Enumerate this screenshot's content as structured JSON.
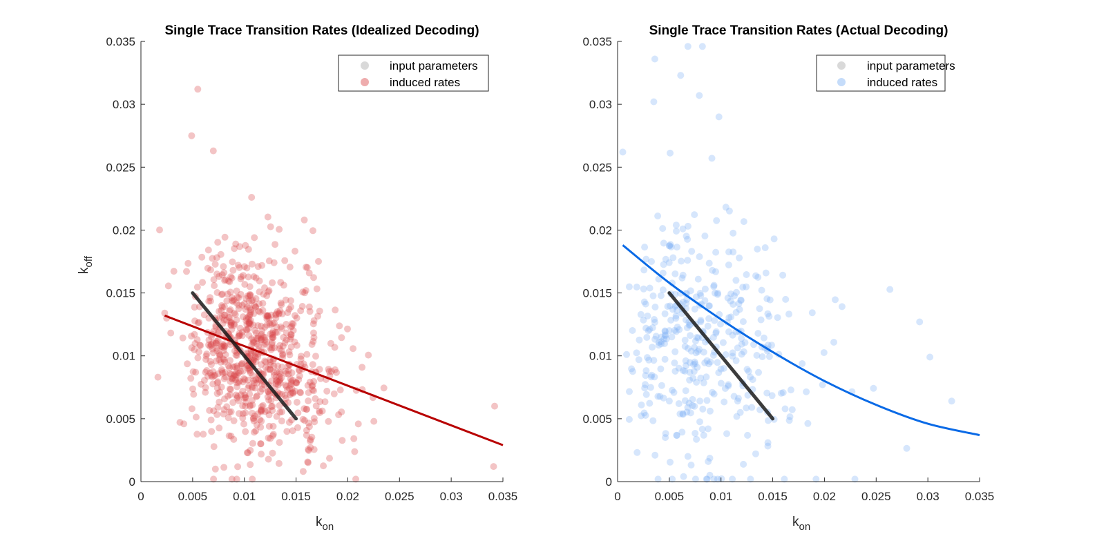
{
  "chart_data": [
    {
      "type": "scatter",
      "title": "Single Trace Transition Rates (Idealized Decoding)",
      "xlabel": {
        "base": "k",
        "sub": "on"
      },
      "ylabel": {
        "base": "k",
        "sub": "off"
      },
      "xlim": [
        0,
        0.035
      ],
      "ylim": [
        0,
        0.035
      ],
      "xticks": [
        "0",
        "0.005",
        "0.01",
        "0.015",
        "0.02",
        "0.025",
        "0.03",
        "0.035"
      ],
      "yticks": [
        "0",
        "0.005",
        "0.01",
        "0.015",
        "0.02",
        "0.025",
        "0.03",
        "0.035"
      ],
      "grid": false,
      "legend": {
        "position": "top-right",
        "entries": [
          "input parameters",
          "induced rates"
        ]
      },
      "colors": {
        "input": "#1a1a1a",
        "input_legend": "#d9d9d9",
        "points": "#d9474a",
        "fit": "#b80000"
      },
      "input_parameters": {
        "x": [
          0.005,
          0.015
        ],
        "y": [
          0.015,
          0.005
        ]
      },
      "fit_line": {
        "x": [
          0.0023,
          0.035
        ],
        "y": [
          0.0132,
          0.0029
        ]
      },
      "induced_rates": {
        "count": 800,
        "center": [
          0.0095,
          0.0105
        ],
        "spread": [
          0.0045,
          0.0038
        ],
        "extremes": [
          [
            0.0055,
            0.0312
          ],
          [
            0.0049,
            0.0275
          ],
          [
            0.007,
            0.0263
          ],
          [
            0.0342,
            0.006
          ],
          [
            0.0341,
            0.0012
          ],
          [
            0.0072,
            0.001
          ],
          [
            0.0023,
            0.0134
          ],
          [
            0.0158,
            0.0208
          ],
          [
            0.0107,
            0.0226
          ]
        ]
      }
    },
    {
      "type": "scatter",
      "title": "Single Trace Transition Rates (Actual Decoding)",
      "xlabel": {
        "base": "k",
        "sub": "on"
      },
      "ylabel": {
        "base": "",
        "sub": ""
      },
      "xlim": [
        0,
        0.035
      ],
      "ylim": [
        0,
        0.035
      ],
      "xticks": [
        "0",
        "0.005",
        "0.01",
        "0.015",
        "0.02",
        "0.025",
        "0.03",
        "0.035"
      ],
      "yticks": [
        "0",
        "0.005",
        "0.01",
        "0.015",
        "0.02",
        "0.025",
        "0.03",
        "0.035"
      ],
      "grid": false,
      "legend": {
        "position": "top-right",
        "entries": [
          "input parameters",
          "induced rates"
        ]
      },
      "colors": {
        "input": "#1a1a1a",
        "input_legend": "#d9d9d9",
        "points": "#7fb2f5",
        "fit": "#0a6ae6"
      },
      "input_parameters": {
        "x": [
          0.005,
          0.015
        ],
        "y": [
          0.015,
          0.005
        ]
      },
      "fit_curve": {
        "x": [
          0.0005,
          0.005,
          0.01,
          0.015,
          0.02,
          0.025,
          0.03,
          0.035
        ],
        "y": [
          0.0188,
          0.0158,
          0.0129,
          0.0103,
          0.008,
          0.0061,
          0.0046,
          0.0037
        ]
      },
      "induced_rates": {
        "count": 400,
        "center": [
          0.008,
          0.011
        ],
        "spread": [
          0.0055,
          0.0048
        ],
        "extremes": [
          [
            0.0068,
            0.0346
          ],
          [
            0.0082,
            0.0346
          ],
          [
            0.0036,
            0.0336
          ],
          [
            0.0061,
            0.0323
          ],
          [
            0.0079,
            0.0307
          ],
          [
            0.0035,
            0.0302
          ],
          [
            0.0098,
            0.029
          ],
          [
            0.0005,
            0.0262
          ],
          [
            0.0323,
            0.0064
          ],
          [
            0.0302,
            0.0099
          ],
          [
            0.0292,
            0.0127
          ],
          [
            0.0068,
            0.002
          ]
        ]
      }
    }
  ]
}
